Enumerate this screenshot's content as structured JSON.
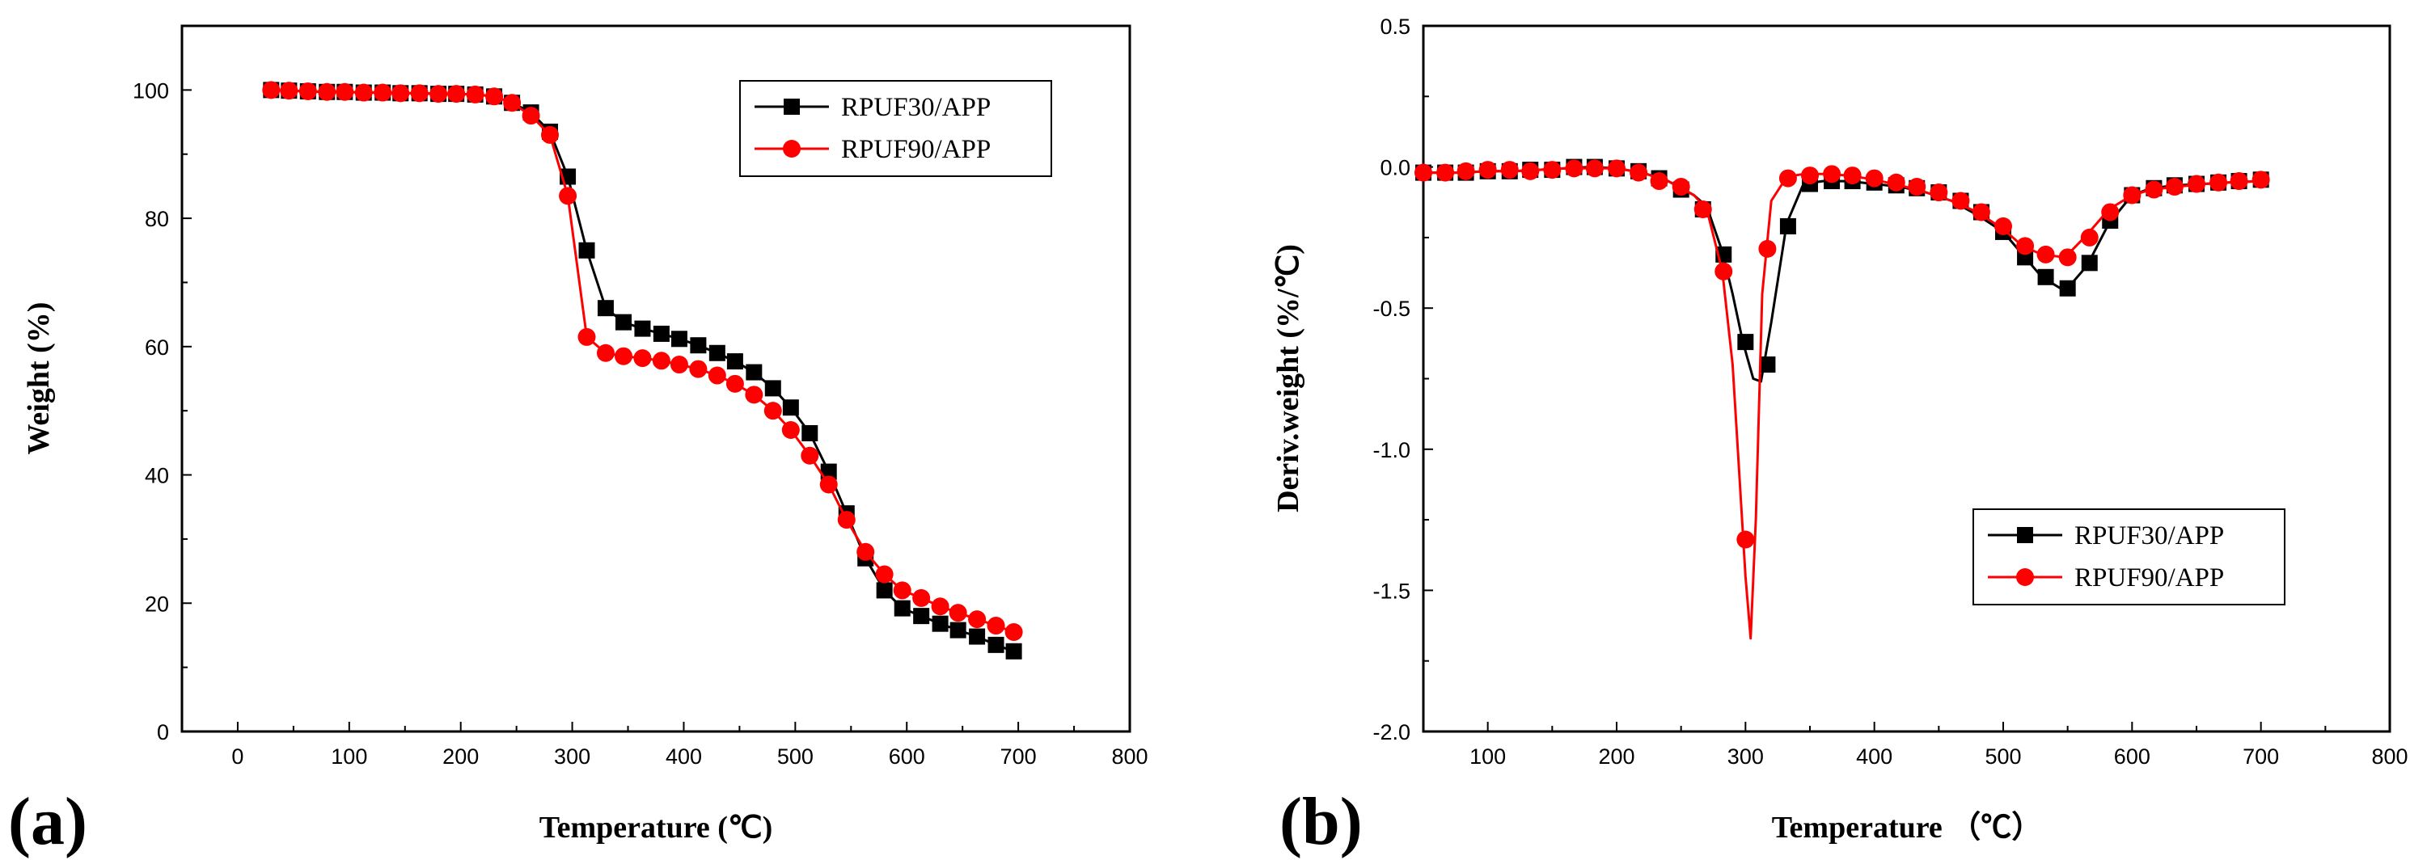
{
  "chart_data": [
    {
      "type": "line",
      "panel_label": "(a)",
      "title": "",
      "xlabel": "Temperature (℃)",
      "ylabel": "Weight (%)",
      "xlim": [
        -50,
        800
      ],
      "ylim": [
        0,
        110
      ],
      "xticks": [
        0,
        100,
        200,
        300,
        400,
        500,
        600,
        700,
        800
      ],
      "xtick_labels": [
        "0",
        "100",
        "200",
        "300",
        "400",
        "500",
        "600",
        "700",
        "800"
      ],
      "yticks": [
        0,
        20,
        40,
        60,
        80,
        100
      ],
      "ytick_labels": [
        "0",
        "20",
        "40",
        "60",
        "80",
        "100"
      ],
      "legend_position": "top-right",
      "series": [
        {
          "name": "RPUF30/APP",
          "color": "#000000",
          "marker": "square",
          "x": [
            30,
            46,
            63,
            80,
            96,
            113,
            130,
            146,
            163,
            180,
            196,
            213,
            230,
            246,
            263,
            280,
            296,
            313,
            330,
            346,
            363,
            380,
            396,
            413,
            430,
            446,
            463,
            480,
            496,
            513,
            530,
            546,
            563,
            580,
            596,
            613,
            630,
            646,
            663,
            680,
            696
          ],
          "y": [
            100,
            99.9,
            99.8,
            99.7,
            99.7,
            99.6,
            99.6,
            99.5,
            99.5,
            99.4,
            99.4,
            99.3,
            99,
            98,
            96.5,
            93.5,
            86.5,
            75,
            66,
            63.8,
            62.8,
            62,
            61.2,
            60.2,
            59,
            57.7,
            56,
            53.5,
            50.5,
            46.5,
            40.5,
            34,
            27,
            22,
            19.2,
            18,
            16.8,
            15.8,
            14.8,
            13.5,
            12.5
          ]
        },
        {
          "name": "RPUF90/APP",
          "color": "#ff0000",
          "marker": "circle",
          "x": [
            30,
            46,
            63,
            80,
            96,
            113,
            130,
            146,
            163,
            180,
            196,
            213,
            230,
            246,
            263,
            280,
            296,
            313,
            330,
            346,
            363,
            380,
            396,
            413,
            430,
            446,
            463,
            480,
            496,
            513,
            530,
            546,
            563,
            580,
            596,
            613,
            630,
            646,
            663,
            680,
            696
          ],
          "y": [
            100,
            99.9,
            99.8,
            99.7,
            99.7,
            99.6,
            99.6,
            99.5,
            99.5,
            99.4,
            99.4,
            99.3,
            99,
            98,
            96,
            93,
            83.5,
            61.5,
            59,
            58.5,
            58.2,
            57.8,
            57.2,
            56.5,
            55.5,
            54.2,
            52.5,
            50,
            47,
            43,
            38.5,
            33,
            28,
            24.5,
            22,
            20.8,
            19.5,
            18.5,
            17.5,
            16.5,
            15.5
          ]
        }
      ]
    },
    {
      "type": "line",
      "panel_label": "(b)",
      "title": "",
      "xlabel": "Temperature （℃）",
      "ylabel": "Deriv.weight (%/℃)",
      "xlim": [
        50,
        800
      ],
      "ylim": [
        -2.0,
        0.5
      ],
      "xticks": [
        100,
        200,
        300,
        400,
        500,
        600,
        700,
        800
      ],
      "xtick_labels": [
        "100",
        "200",
        "300",
        "400",
        "500",
        "600",
        "700",
        "800"
      ],
      "yticks": [
        -2.0,
        -1.5,
        -1.0,
        -0.5,
        0.0,
        0.5
      ],
      "ytick_labels": [
        "-2.0",
        "-1.5",
        "-1.0",
        "-0.5",
        "0.0",
        "0.5"
      ],
      "legend_position": "bottom-right",
      "series": [
        {
          "name": "RPUF30/APP",
          "color": "#000000",
          "marker": "square",
          "x": [
            50,
            80,
            100,
            120,
            140,
            160,
            180,
            200,
            220,
            240,
            260,
            270,
            282,
            290,
            298,
            306,
            312,
            320,
            332,
            345,
            360,
            380,
            400,
            420,
            440,
            460,
            480,
            500,
            515,
            530,
            548,
            565,
            582,
            600,
            615,
            635,
            655,
            675,
            700
          ],
          "line_y": [
            -0.02,
            -0.02,
            -0.015,
            -0.015,
            -0.01,
            -0.005,
            0.0,
            -0.005,
            -0.02,
            -0.05,
            -0.1,
            -0.14,
            -0.3,
            -0.45,
            -0.62,
            -0.75,
            -0.76,
            -0.55,
            -0.2,
            -0.06,
            -0.05,
            -0.05,
            -0.06,
            -0.07,
            -0.09,
            -0.12,
            -0.17,
            -0.23,
            -0.31,
            -0.39,
            -0.44,
            -0.35,
            -0.2,
            -0.1,
            -0.075,
            -0.065,
            -0.06,
            -0.055,
            -0.05
          ],
          "marker_x": [
            50,
            67,
            83,
            100,
            117,
            133,
            150,
            167,
            183,
            200,
            217,
            233,
            250,
            267,
            283,
            300,
            317,
            333,
            350,
            367,
            383,
            400,
            417,
            433,
            450,
            467,
            483,
            500,
            517,
            533,
            550,
            567,
            583,
            600,
            617,
            633,
            650,
            667,
            683,
            700
          ],
          "marker_y": [
            -0.02,
            -0.02,
            -0.02,
            -0.015,
            -0.015,
            -0.01,
            -0.01,
            0.0,
            0.0,
            -0.005,
            -0.015,
            -0.04,
            -0.08,
            -0.15,
            -0.31,
            -0.62,
            -0.7,
            -0.21,
            -0.06,
            -0.05,
            -0.05,
            -0.055,
            -0.065,
            -0.075,
            -0.09,
            -0.12,
            -0.16,
            -0.23,
            -0.32,
            -0.39,
            -0.43,
            -0.34,
            -0.19,
            -0.1,
            -0.075,
            -0.065,
            -0.06,
            -0.055,
            -0.05,
            -0.045
          ]
        },
        {
          "name": "RPUF90/APP",
          "color": "#ff0000",
          "marker": "circle",
          "x": [
            50,
            80,
            100,
            120,
            140,
            160,
            180,
            200,
            220,
            240,
            260,
            270,
            282,
            290,
            296,
            300,
            304,
            308,
            313,
            320,
            332,
            345,
            360,
            380,
            400,
            420,
            440,
            460,
            480,
            500,
            515,
            530,
            548,
            565,
            582,
            600,
            615,
            635,
            655,
            675,
            700
          ],
          "line_y": [
            -0.02,
            -0.02,
            -0.015,
            -0.015,
            -0.01,
            -0.005,
            -0.005,
            -0.005,
            -0.02,
            -0.05,
            -0.1,
            -0.15,
            -0.37,
            -0.7,
            -1.15,
            -1.45,
            -1.67,
            -1.25,
            -0.45,
            -0.12,
            -0.035,
            -0.025,
            -0.025,
            -0.03,
            -0.045,
            -0.065,
            -0.09,
            -0.12,
            -0.16,
            -0.22,
            -0.28,
            -0.31,
            -0.32,
            -0.24,
            -0.15,
            -0.1,
            -0.08,
            -0.07,
            -0.06,
            -0.055,
            -0.05
          ],
          "marker_x": [
            50,
            67,
            83,
            100,
            117,
            133,
            150,
            167,
            183,
            200,
            217,
            233,
            250,
            267,
            283,
            300,
            317,
            333,
            350,
            367,
            383,
            400,
            417,
            433,
            450,
            467,
            483,
            500,
            517,
            533,
            550,
            567,
            583,
            600,
            617,
            633,
            650,
            667,
            683,
            700
          ],
          "marker_y": [
            -0.02,
            -0.02,
            -0.015,
            -0.01,
            -0.01,
            -0.015,
            -0.01,
            -0.005,
            -0.005,
            -0.005,
            -0.02,
            -0.05,
            -0.07,
            -0.15,
            -0.37,
            -1.32,
            -0.29,
            -0.04,
            -0.03,
            -0.025,
            -0.03,
            -0.04,
            -0.055,
            -0.07,
            -0.09,
            -0.12,
            -0.16,
            -0.21,
            -0.28,
            -0.31,
            -0.32,
            -0.25,
            -0.16,
            -0.1,
            -0.08,
            -0.07,
            -0.06,
            -0.055,
            -0.05,
            -0.045
          ]
        }
      ]
    }
  ]
}
